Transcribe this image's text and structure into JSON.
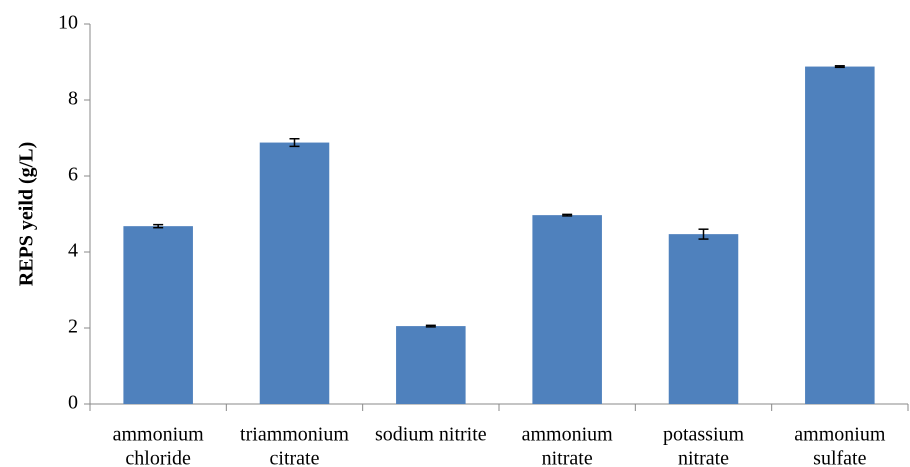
{
  "chart_data": {
    "type": "bar",
    "y_label": "REPS yeild (g/L)",
    "categories": [
      [
        "ammonium",
        "chloride"
      ],
      [
        "triammonium",
        "citrate"
      ],
      [
        "sodium nitrite"
      ],
      [
        "ammonium",
        "nitrate"
      ],
      [
        "potassium",
        "nitrate"
      ],
      [
        "ammonium",
        "sulfate"
      ]
    ],
    "values": [
      4.68,
      6.88,
      2.05,
      4.97,
      4.47,
      8.88
    ],
    "errors": [
      0.04,
      0.1,
      0.02,
      0.02,
      0.13,
      0.02
    ],
    "color": "#4f81bd",
    "ylim": [
      0,
      10
    ],
    "yticks": [
      0,
      2,
      4,
      6,
      8,
      10
    ],
    "grid": false
  }
}
